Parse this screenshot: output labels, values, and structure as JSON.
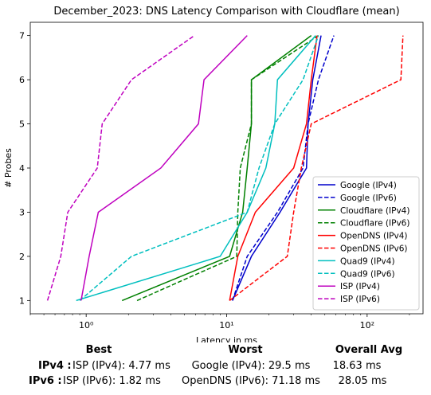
{
  "chart_data": {
    "type": "line",
    "title": "December_2023: DNS Latency Comparison with Cloudflare (mean)",
    "xlabel": "Latency in ms",
    "ylabel": "# Probes",
    "xscale": "log",
    "xlim": [
      0.4,
      250
    ],
    "ylim": [
      0.7,
      7.3
    ],
    "xticks": [
      {
        "value": 1,
        "label": "10⁰"
      },
      {
        "value": 10,
        "label": "10¹"
      },
      {
        "value": 100,
        "label": "10²"
      }
    ],
    "yticks": [
      1,
      2,
      3,
      4,
      5,
      6,
      7
    ],
    "grid": false,
    "legend_position": "lower-right",
    "series": [
      {
        "name": "Google (IPv4)",
        "color": "#0000cc",
        "dash": "solid",
        "points": [
          [
            11,
            1
          ],
          [
            15,
            2
          ],
          [
            24,
            3
          ],
          [
            37,
            4
          ],
          [
            38,
            5
          ],
          [
            41,
            6
          ],
          [
            47,
            7
          ]
        ]
      },
      {
        "name": "Google (IPv6)",
        "color": "#0000cc",
        "dash": "dashed",
        "points": [
          [
            11,
            1
          ],
          [
            14,
            2
          ],
          [
            23,
            3
          ],
          [
            35,
            4
          ],
          [
            38,
            5
          ],
          [
            45,
            6
          ],
          [
            58,
            7
          ]
        ]
      },
      {
        "name": "Cloudflare (IPv4)",
        "color": "#008000",
        "dash": "solid",
        "points": [
          [
            1.8,
            1
          ],
          [
            10.5,
            2
          ],
          [
            13,
            3
          ],
          [
            14,
            4
          ],
          [
            15,
            5
          ],
          [
            15,
            6
          ],
          [
            40,
            7
          ]
        ]
      },
      {
        "name": "Cloudflare (IPv6)",
        "color": "#008000",
        "dash": "dashed",
        "points": [
          [
            2.3,
            1
          ],
          [
            11.8,
            2
          ],
          [
            12,
            3
          ],
          [
            12.5,
            4
          ],
          [
            15,
            5
          ],
          [
            15,
            6
          ],
          [
            45,
            7
          ]
        ]
      },
      {
        "name": "OpenDNS (IPv4)",
        "color": "#ff0000",
        "dash": "solid",
        "points": [
          [
            10.5,
            1
          ],
          [
            12,
            2
          ],
          [
            16,
            3
          ],
          [
            30,
            4
          ],
          [
            37,
            5
          ],
          [
            40,
            6
          ],
          [
            44,
            7
          ]
        ]
      },
      {
        "name": "OpenDNS (IPv6)",
        "color": "#ff0000",
        "dash": "dashed",
        "points": [
          [
            10.5,
            1
          ],
          [
            27,
            2
          ],
          [
            30,
            3
          ],
          [
            34,
            4
          ],
          [
            40,
            5
          ],
          [
            174,
            6
          ],
          [
            180,
            7
          ]
        ]
      },
      {
        "name": "Quad9 (IPv4)",
        "color": "#00bfbf",
        "dash": "solid",
        "points": [
          [
            0.85,
            1
          ],
          [
            9,
            2
          ],
          [
            14,
            3
          ],
          [
            19,
            4
          ],
          [
            22,
            5
          ],
          [
            23,
            6
          ],
          [
            43,
            7
          ]
        ]
      },
      {
        "name": "Quad9 (IPv6)",
        "color": "#00bfbf",
        "dash": "dashed",
        "points": [
          [
            0.9,
            1
          ],
          [
            2.1,
            2
          ],
          [
            14,
            3
          ],
          [
            17,
            4
          ],
          [
            22,
            5
          ],
          [
            35,
            6
          ],
          [
            45,
            7
          ]
        ]
      },
      {
        "name": "ISP (IPv4)",
        "color": "#bf00bf",
        "dash": "solid",
        "points": [
          [
            0.92,
            1
          ],
          [
            1.05,
            2
          ],
          [
            1.22,
            3
          ],
          [
            3.4,
            4
          ],
          [
            6.3,
            5
          ],
          [
            6.9,
            6
          ],
          [
            14,
            7
          ]
        ]
      },
      {
        "name": "ISP (IPv6)",
        "color": "#bf00bf",
        "dash": "dashed",
        "points": [
          [
            0.53,
            1
          ],
          [
            0.66,
            2
          ],
          [
            0.74,
            3
          ],
          [
            1.2,
            4
          ],
          [
            1.3,
            5
          ],
          [
            2.1,
            6
          ],
          [
            5.9,
            7
          ]
        ]
      }
    ]
  },
  "summary": {
    "headers": {
      "best": "Best",
      "worst": "Worst",
      "overall": "Overall Avg"
    },
    "rows": [
      {
        "label": "IPv4 :",
        "best": "ISP (IPv4): 4.77 ms",
        "worst": "Google (IPv4): 29.5 ms",
        "overall": "18.63 ms"
      },
      {
        "label": "IPv6 :",
        "best": "ISP (IPv6): 1.82 ms",
        "worst": "OpenDNS (IPv6): 71.18 ms",
        "overall": "28.05 ms"
      }
    ]
  }
}
